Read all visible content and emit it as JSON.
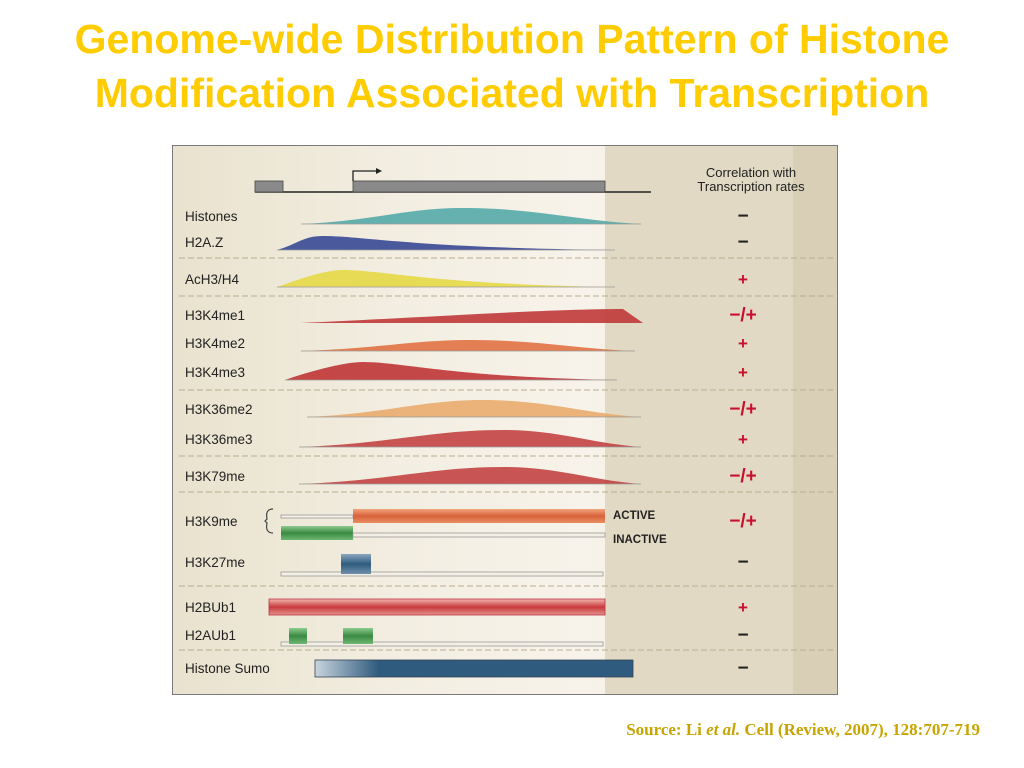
{
  "slide": {
    "title_line1": "Genome-wide Distribution Pattern of Histone",
    "title_line2": "Modification Associated with Transcription"
  },
  "figure": {
    "header": {
      "line1": "Correlation with",
      "line2": "Transcription rates"
    },
    "colors": {
      "teal": "#4aa6a6",
      "navy": "#3c4c96",
      "yellow": "#e6d94a",
      "red": "#c0383a",
      "orange": "#e06a3a",
      "peach": "#e9a766",
      "green": "#3f8f45",
      "steel": "#2f5b7e",
      "plus": "#c8102e",
      "minus": "#222222"
    },
    "rows": [
      {
        "label": "Histones",
        "shape": "teal-dome",
        "correlation": "−"
      },
      {
        "label": "H2A.Z",
        "shape": "navy-peak",
        "correlation": "−"
      },
      {
        "label": "AcH3/H4",
        "shape": "yellow-peak",
        "correlation": "+"
      },
      {
        "label": "H3K4me1",
        "shape": "red-ramp",
        "correlation": "−/+"
      },
      {
        "label": "H3K4me2",
        "shape": "orange-mid",
        "correlation": "+"
      },
      {
        "label": "H3K4me3",
        "shape": "red-peak",
        "correlation": "+"
      },
      {
        "label": "H3K36me2",
        "shape": "peach-dome",
        "correlation": "−/+"
      },
      {
        "label": "H3K36me3",
        "shape": "red-dome",
        "correlation": "+"
      },
      {
        "label": "H3K79me",
        "shape": "red-dome",
        "correlation": "−/+"
      },
      {
        "label": "H3K9me",
        "shape": "bars",
        "correlation": "−/+"
      },
      {
        "label": "H3K27me",
        "shape": "steel-block",
        "correlation": "−"
      },
      {
        "label": "H2BUb1",
        "shape": "red-bar",
        "correlation": "+"
      },
      {
        "label": "H2AUb1",
        "shape": "green-blocks",
        "correlation": "−"
      },
      {
        "label": "Histone Sumo",
        "shape": "steel-bar",
        "correlation": "−"
      }
    ],
    "h3k9me_states": {
      "active": "ACTIVE",
      "inactive": "INACTIVE"
    }
  },
  "source": {
    "prefix": "Source: Li ",
    "italic": "et al.",
    "rest": " Cell (Review, 2007), 128:707-719"
  }
}
